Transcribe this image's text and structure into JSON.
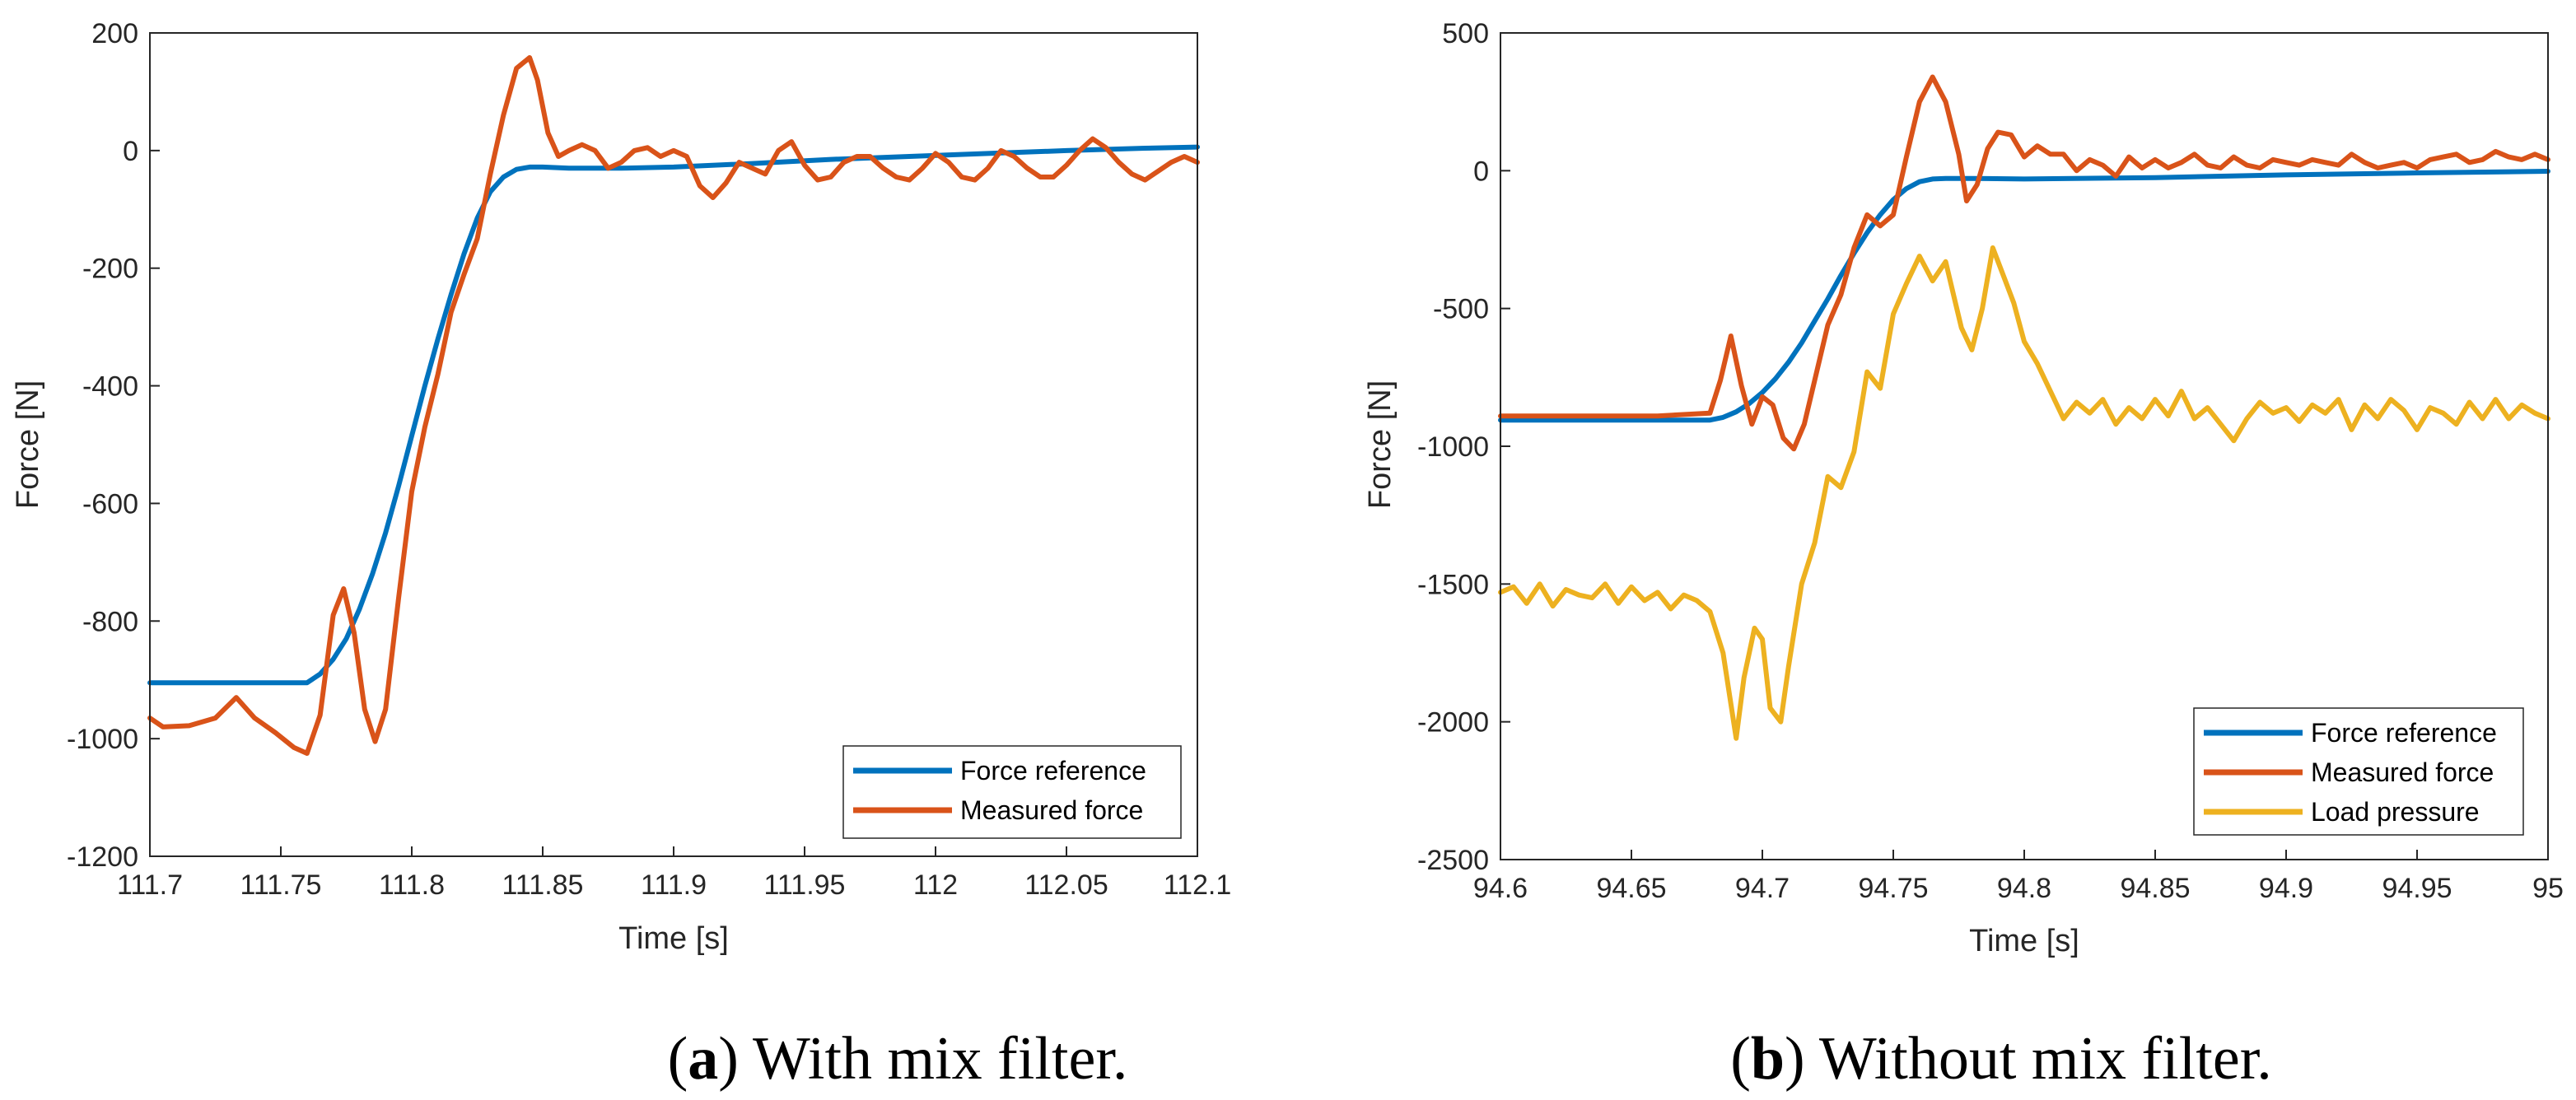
{
  "colors": {
    "force_reference": "#0072BD",
    "measured_force": "#D95319",
    "load_pressure": "#EDB120"
  },
  "chart_data": [
    {
      "type": "line",
      "id": "a",
      "caption_letter": "a",
      "caption_text": "With mix filter.",
      "xlabel": "Time [s]",
      "ylabel": "Force [N]",
      "xlim": [
        111.7,
        112.1
      ],
      "ylim": [
        -1200,
        200
      ],
      "xticks": [
        111.7,
        111.75,
        111.8,
        111.85,
        111.9,
        111.95,
        112,
        112.05,
        112.1
      ],
      "xtick_labels": [
        "111.7",
        "111.75",
        "111.8",
        "111.85",
        "111.9",
        "111.95",
        "112",
        "112.05",
        "112.1"
      ],
      "yticks": [
        200,
        0,
        -200,
        -400,
        -600,
        -800,
        -1000,
        -1200
      ],
      "ytick_labels": [
        "200",
        "0",
        "-200",
        "-400",
        "-600",
        "-800",
        "-1000",
        "-1200"
      ],
      "legend_location": "bottom-right",
      "series": [
        {
          "name": "Force reference",
          "color_key": "force_reference",
          "x": [
            111.7,
            111.72,
            111.74,
            111.76,
            111.765,
            111.77,
            111.775,
            111.78,
            111.785,
            111.79,
            111.795,
            111.8,
            111.805,
            111.81,
            111.815,
            111.82,
            111.825,
            111.83,
            111.835,
            111.84,
            111.845,
            111.85,
            111.86,
            111.88,
            111.9,
            111.93,
            111.96,
            111.99,
            112.02,
            112.05,
            112.08,
            112.1
          ],
          "y": [
            -905,
            -905,
            -905,
            -905,
            -890,
            -865,
            -830,
            -780,
            -720,
            -650,
            -570,
            -485,
            -400,
            -320,
            -245,
            -175,
            -115,
            -70,
            -45,
            -32,
            -28,
            -28,
            -30,
            -30,
            -28,
            -22,
            -15,
            -10,
            -5,
            0,
            4,
            6
          ]
        },
        {
          "name": "Measured force",
          "color_key": "measured_force",
          "x": [
            111.7,
            111.705,
            111.715,
            111.725,
            111.733,
            111.74,
            111.748,
            111.755,
            111.76,
            111.765,
            111.77,
            111.774,
            111.778,
            111.782,
            111.786,
            111.79,
            111.795,
            111.8,
            111.805,
            111.81,
            111.815,
            111.82,
            111.825,
            111.83,
            111.835,
            111.84,
            111.845,
            111.848,
            111.852,
            111.856,
            111.86,
            111.865,
            111.87,
            111.875,
            111.88,
            111.885,
            111.89,
            111.895,
            111.9,
            111.905,
            111.91,
            111.915,
            111.92,
            111.925,
            111.93,
            111.935,
            111.94,
            111.945,
            111.95,
            111.955,
            111.96,
            111.965,
            111.97,
            111.975,
            111.98,
            111.985,
            111.99,
            111.995,
            112.0,
            112.005,
            112.01,
            112.015,
            112.02,
            112.025,
            112.03,
            112.035,
            112.04,
            112.045,
            112.05,
            112.055,
            112.06,
            112.065,
            112.07,
            112.075,
            112.08,
            112.085,
            112.09,
            112.095,
            112.1
          ],
          "y": [
            -965,
            -980,
            -978,
            -965,
            -930,
            -965,
            -990,
            -1015,
            -1025,
            -960,
            -790,
            -745,
            -820,
            -950,
            -1005,
            -950,
            -760,
            -580,
            -470,
            -380,
            -275,
            -210,
            -150,
            -40,
            60,
            140,
            158,
            120,
            30,
            -10,
            0,
            10,
            0,
            -30,
            -20,
            0,
            5,
            -10,
            0,
            -10,
            -60,
            -80,
            -55,
            -20,
            -30,
            -40,
            0,
            15,
            -25,
            -50,
            -45,
            -20,
            -10,
            -10,
            -30,
            -45,
            -50,
            -30,
            -5,
            -20,
            -45,
            -50,
            -30,
            0,
            -10,
            -30,
            -45,
            -45,
            -25,
            0,
            20,
            5,
            -20,
            -40,
            -50,
            -35,
            -20,
            -10,
            -20
          ]
        }
      ]
    },
    {
      "type": "line",
      "id": "b",
      "caption_letter": "b",
      "caption_text": "Without mix filter.",
      "xlabel": "Time [s]",
      "ylabel": "Force [N]",
      "xlim": [
        94.6,
        95.0
      ],
      "ylim": [
        -2500,
        500
      ],
      "xticks": [
        94.6,
        94.65,
        94.7,
        94.75,
        94.8,
        94.85,
        94.9,
        94.95,
        95.0
      ],
      "xtick_labels": [
        "94.6",
        "94.65",
        "94.7",
        "94.75",
        "94.8",
        "94.85",
        "94.9",
        "94.95",
        "95"
      ],
      "yticks": [
        500,
        0,
        -500,
        -1000,
        -1500,
        -2000,
        -2500
      ],
      "ytick_labels": [
        "500",
        "0",
        "-500",
        "-1000",
        "-1500",
        "-2000",
        "-2500"
      ],
      "legend_location": "bottom-right",
      "series": [
        {
          "name": "Force reference",
          "color_key": "force_reference",
          "x": [
            94.6,
            94.64,
            94.68,
            94.685,
            94.69,
            94.695,
            94.7,
            94.705,
            94.71,
            94.715,
            94.72,
            94.725,
            94.73,
            94.735,
            94.74,
            94.745,
            94.75,
            94.755,
            94.76,
            94.765,
            94.77,
            94.78,
            94.8,
            94.85,
            94.9,
            94.95,
            95.0
          ],
          "y": [
            -905,
            -905,
            -905,
            -895,
            -875,
            -845,
            -805,
            -755,
            -695,
            -625,
            -545,
            -465,
            -380,
            -300,
            -225,
            -160,
            -105,
            -65,
            -40,
            -30,
            -28,
            -28,
            -30,
            -25,
            -15,
            -8,
            -2
          ]
        },
        {
          "name": "Measured force",
          "color_key": "measured_force",
          "x": [
            94.6,
            94.62,
            94.64,
            94.66,
            94.68,
            94.684,
            94.688,
            94.692,
            94.696,
            94.7,
            94.704,
            94.708,
            94.712,
            94.716,
            94.72,
            94.725,
            94.73,
            94.735,
            94.74,
            94.745,
            94.75,
            94.755,
            94.76,
            94.765,
            94.77,
            94.775,
            94.778,
            94.782,
            94.786,
            94.79,
            94.795,
            94.8,
            94.805,
            94.81,
            94.815,
            94.82,
            94.825,
            94.83,
            94.835,
            94.84,
            94.845,
            94.85,
            94.855,
            94.86,
            94.865,
            94.87,
            94.875,
            94.88,
            94.885,
            94.89,
            94.895,
            94.9,
            94.905,
            94.91,
            94.915,
            94.92,
            94.925,
            94.93,
            94.935,
            94.94,
            94.945,
            94.95,
            94.955,
            94.96,
            94.965,
            94.97,
            94.975,
            94.98,
            94.985,
            94.99,
            94.995,
            95.0
          ],
          "y": [
            -890,
            -890,
            -890,
            -890,
            -880,
            -760,
            -600,
            -780,
            -920,
            -820,
            -850,
            -970,
            -1010,
            -920,
            -760,
            -560,
            -450,
            -280,
            -160,
            -200,
            -160,
            50,
            250,
            340,
            250,
            60,
            -110,
            -50,
            80,
            140,
            130,
            50,
            90,
            60,
            60,
            0,
            40,
            20,
            -20,
            50,
            10,
            40,
            10,
            30,
            60,
            20,
            10,
            50,
            20,
            10,
            40,
            30,
            20,
            40,
            30,
            20,
            60,
            30,
            10,
            20,
            30,
            10,
            40,
            50,
            60,
            30,
            40,
            70,
            50,
            40,
            60,
            40
          ]
        },
        {
          "name": "Load pressure",
          "color_key": "load_pressure",
          "x": [
            94.6,
            94.605,
            94.61,
            94.615,
            94.62,
            94.625,
            94.63,
            94.635,
            94.64,
            94.645,
            94.65,
            94.655,
            94.66,
            94.665,
            94.67,
            94.675,
            94.68,
            94.685,
            94.69,
            94.693,
            94.697,
            94.7,
            94.703,
            94.707,
            94.71,
            94.715,
            94.72,
            94.725,
            94.73,
            94.735,
            94.74,
            94.745,
            94.75,
            94.755,
            94.76,
            94.765,
            94.77,
            94.773,
            94.776,
            94.78,
            94.784,
            94.788,
            94.792,
            94.796,
            94.8,
            94.805,
            94.81,
            94.815,
            94.82,
            94.825,
            94.83,
            94.835,
            94.84,
            94.845,
            94.85,
            94.855,
            94.86,
            94.865,
            94.87,
            94.875,
            94.88,
            94.885,
            94.89,
            94.895,
            94.9,
            94.905,
            94.91,
            94.915,
            94.92,
            94.925,
            94.93,
            94.935,
            94.94,
            94.945,
            94.95,
            94.955,
            94.96,
            94.965,
            94.97,
            94.975,
            94.98,
            94.985,
            94.99,
            94.995,
            95.0
          ],
          "y": [
            -1530,
            -1510,
            -1570,
            -1500,
            -1580,
            -1520,
            -1540,
            -1550,
            -1500,
            -1570,
            -1510,
            -1560,
            -1530,
            -1590,
            -1540,
            -1560,
            -1600,
            -1750,
            -2060,
            -1840,
            -1660,
            -1700,
            -1950,
            -2000,
            -1800,
            -1500,
            -1350,
            -1110,
            -1150,
            -1020,
            -730,
            -790,
            -520,
            -410,
            -310,
            -400,
            -330,
            -450,
            -570,
            -650,
            -500,
            -280,
            -380,
            -480,
            -620,
            -700,
            -800,
            -900,
            -840,
            -880,
            -830,
            -920,
            -860,
            -900,
            -830,
            -890,
            -800,
            -900,
            -860,
            -920,
            -980,
            -900,
            -840,
            -880,
            -860,
            -910,
            -850,
            -880,
            -830,
            -940,
            -850,
            -900,
            -830,
            -870,
            -940,
            -860,
            -880,
            -920,
            -840,
            -900,
            -830,
            -900,
            -850,
            -880,
            -900
          ]
        }
      ]
    }
  ]
}
